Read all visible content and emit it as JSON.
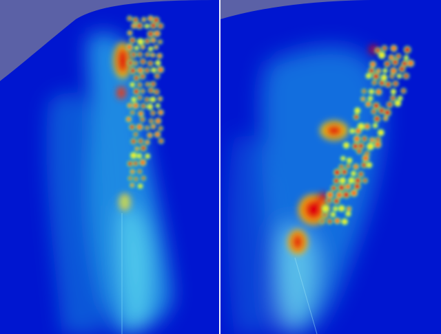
{
  "figure": {
    "panels": [
      {
        "view": "left",
        "background": "#5b61a6",
        "surface": "#0018d8",
        "hotspot_colors": [
          "#e00010",
          "#ff6a00",
          "#f5f000",
          "#44e07a",
          "#0060ff"
        ]
      },
      {
        "view": "right",
        "background": "#5b61a6",
        "surface": "#0018d8",
        "hotspot_colors": [
          "#e00010",
          "#ff6a00",
          "#f5f000",
          "#44e07a",
          "#0060ff"
        ]
      }
    ],
    "colormap": "jet"
  }
}
